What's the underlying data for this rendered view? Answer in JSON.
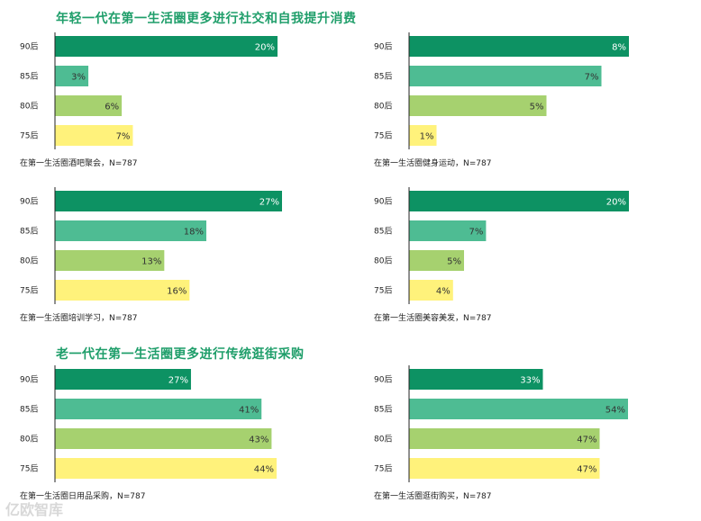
{
  "sections": {
    "young_title": "年轻一代在第一生活圈更多进行社交和自我提升消费",
    "old_title": "老一代在第一生活圈更多进行传统逛街采购"
  },
  "colors": {
    "90后": "#0d9263",
    "85后": "#4ebc93",
    "80后": "#a6d16f",
    "75后": "#fff27b",
    "title": "#1f9e6a"
  },
  "watermark": "亿欧智库",
  "chart_data": [
    {
      "type": "bar",
      "orientation": "horizontal",
      "categories": [
        "90后",
        "85后",
        "80后",
        "75后"
      ],
      "values": [
        20,
        3,
        6,
        7
      ],
      "labels": [
        "20%",
        "3%",
        "6%",
        "7%"
      ],
      "caption": "在第一生活圈酒吧聚会，N=787",
      "xlim": [
        0,
        20
      ]
    },
    {
      "type": "bar",
      "orientation": "horizontal",
      "categories": [
        "90后",
        "85后",
        "80后",
        "75后"
      ],
      "values": [
        8,
        7,
        5,
        1
      ],
      "labels": [
        "8%",
        "7%",
        "5%",
        "1%"
      ],
      "caption": "在第一生活圈健身运动，N=787",
      "xlim": [
        0,
        8
      ]
    },
    {
      "type": "bar",
      "orientation": "horizontal",
      "categories": [
        "90后",
        "85后",
        "80后",
        "75后"
      ],
      "values": [
        27,
        18,
        13,
        16
      ],
      "labels": [
        "27%",
        "18%",
        "13%",
        "16%"
      ],
      "caption": "在第一生活圈培训学习，N=787",
      "xlim": [
        0,
        27
      ]
    },
    {
      "type": "bar",
      "orientation": "horizontal",
      "categories": [
        "90后",
        "85后",
        "80后",
        "75后"
      ],
      "values": [
        20,
        7,
        5,
        4
      ],
      "labels": [
        "20%",
        "7%",
        "5%",
        "4%"
      ],
      "caption": "在第一生活圈美容美发，N=787",
      "xlim": [
        0,
        20
      ]
    },
    {
      "type": "bar",
      "orientation": "horizontal",
      "categories": [
        "90后",
        "85后",
        "80后",
        "75后"
      ],
      "values": [
        27,
        41,
        43,
        44
      ],
      "labels": [
        "27%",
        "41%",
        "43%",
        "44%"
      ],
      "caption": "在第一生活圈日用品采购，N=787",
      "xlim": [
        0,
        44
      ]
    },
    {
      "type": "bar",
      "orientation": "horizontal",
      "categories": [
        "90后",
        "85后",
        "80后",
        "75后"
      ],
      "values": [
        33,
        54,
        47,
        47
      ],
      "labels": [
        "33%",
        "54%",
        "47%",
        "47%"
      ],
      "caption": "在第一生活圈逛街购买，N=787",
      "xlim": [
        0,
        54
      ]
    }
  ]
}
